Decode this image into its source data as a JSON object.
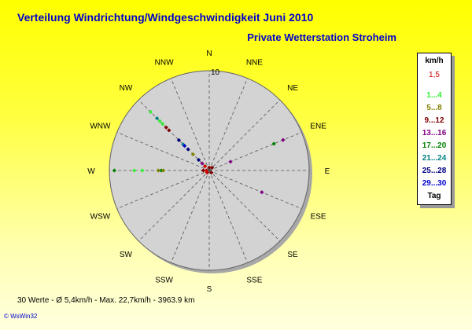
{
  "title": "Verteilung Windrichtung/Windgeschwindigkeit  Juni 2010",
  "subtitle": "Private Wetterstation Stroheim",
  "stats": "30 Werte   -   Ø 5,4km/h  -  Max. 22,7km/h  -   3963.9 km",
  "footer": "© WsWin32",
  "legend": {
    "header": "km/h",
    "items": [
      {
        "label": "1,5",
        "color": "#cc0000"
      },
      {
        "label": "1...4",
        "color": "#33ee33"
      },
      {
        "label": "5...8",
        "color": "#808000"
      },
      {
        "label": "9...12",
        "color": "#800000"
      },
      {
        "label": "13...16",
        "color": "#800080"
      },
      {
        "label": "17...20",
        "color": "#008000"
      },
      {
        "label": "21...24",
        "color": "#008080"
      },
      {
        "label": "25...28",
        "color": "#000080"
      },
      {
        "label": "29...30",
        "color": "#0000cc"
      },
      {
        "label": "Tag",
        "color": "#000000"
      }
    ]
  },
  "chart_data": {
    "type": "scatter",
    "polar": true,
    "title": "Verteilung Windrichtung/Windgeschwindigkeit  Juni 2010",
    "radial_max": 10,
    "radial_label": "10",
    "directions": [
      "N",
      "NNE",
      "NE",
      "ENE",
      "E",
      "ESE",
      "SE",
      "SSE",
      "S",
      "SSW",
      "SW",
      "WSW",
      "W",
      "WNW",
      "NW",
      "NNW"
    ],
    "grid": true,
    "legend_position": "right",
    "points": [
      {
        "dir": "NW",
        "r": 8.3,
        "color": "#33ee33"
      },
      {
        "dir": "NW",
        "r": 7.4,
        "color": "#008080"
      },
      {
        "dir": "NW",
        "r": 7.0,
        "color": "#33ee33"
      },
      {
        "dir": "NW",
        "r": 6.6,
        "color": "#33ee33"
      },
      {
        "dir": "NW",
        "r": 6.1,
        "color": "#800000"
      },
      {
        "dir": "NW",
        "r": 5.7,
        "color": "#800000"
      },
      {
        "dir": "NW",
        "r": 4.3,
        "color": "#000080"
      },
      {
        "dir": "NW",
        "r": 3.7,
        "color": "#008080"
      },
      {
        "dir": "NW",
        "r": 3.5,
        "color": "#0000cc"
      },
      {
        "dir": "NW",
        "r": 3.0,
        "color": "#000080"
      },
      {
        "dir": "NW",
        "r": 2.3,
        "color": "#808000"
      },
      {
        "dir": "NW",
        "r": 1.5,
        "color": "#000080"
      },
      {
        "dir": "NW",
        "r": 1.0,
        "color": "#800080"
      },
      {
        "dir": "NW",
        "r": 0.6,
        "color": "#cc0000"
      },
      {
        "dir": "W",
        "r": 9.5,
        "color": "#008000"
      },
      {
        "dir": "W",
        "r": 7.5,
        "color": "#33ee33"
      },
      {
        "dir": "W",
        "r": 6.7,
        "color": "#33ee33"
      },
      {
        "dir": "W",
        "r": 5.1,
        "color": "#808000"
      },
      {
        "dir": "W",
        "r": 4.8,
        "color": "#008000"
      },
      {
        "dir": "W",
        "r": 4.6,
        "color": "#808000"
      },
      {
        "dir": "W",
        "r": 0.6,
        "color": "#800000"
      },
      {
        "dir": "W",
        "r": 0.3,
        "color": "#cc0000"
      },
      {
        "dir": "ENE",
        "r": 7.0,
        "color": "#008000"
      },
      {
        "dir": "ENE",
        "r": 8.0,
        "color": "#800080"
      },
      {
        "dir": "ENE",
        "r": 2.3,
        "color": "#800080"
      },
      {
        "dir": "ESE",
        "r": 5.7,
        "color": "#800080"
      },
      {
        "dir": "NE",
        "r": 0.4,
        "color": "#800000"
      },
      {
        "dir": "SE",
        "r": 0.3,
        "color": "#800000"
      },
      {
        "dir": "SW",
        "r": 0.3,
        "color": "#cc0000"
      },
      {
        "dir": "N",
        "r": 0.3,
        "color": "#800000"
      }
    ]
  }
}
